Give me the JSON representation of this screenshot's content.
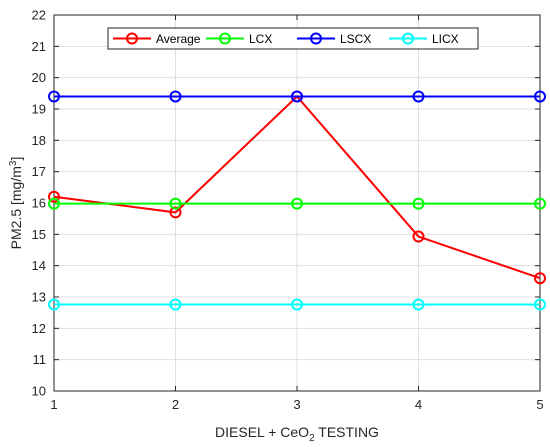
{
  "chart_data": {
    "type": "line",
    "title": "",
    "xlabel": {
      "main": "DIESEL + CeO",
      "sub": "2",
      "suffix": " TESTING"
    },
    "ylabel": {
      "main": "PM2.5 [mg/m",
      "sup": "3",
      "suffix": "]"
    },
    "x": [
      1,
      2,
      3,
      4,
      5
    ],
    "xlim": [
      1,
      5
    ],
    "ylim": [
      10,
      22
    ],
    "xticks": [
      "1",
      "2",
      "3",
      "4",
      "5"
    ],
    "yticks": [
      "10",
      "11",
      "12",
      "13",
      "14",
      "15",
      "16",
      "17",
      "18",
      "19",
      "20",
      "21",
      "22"
    ],
    "grid": true,
    "legend_position": "top",
    "series": [
      {
        "name": "Average",
        "color": "#ff0000",
        "values": [
          16.2,
          15.7,
          19.4,
          14.93,
          13.6
        ]
      },
      {
        "name": "LCX",
        "color": "#00ff00",
        "values": [
          15.98,
          15.98,
          15.98,
          15.98,
          15.98
        ]
      },
      {
        "name": "LSCX",
        "color": "#0000ff",
        "values": [
          19.4,
          19.4,
          19.4,
          19.4,
          19.4
        ]
      },
      {
        "name": "LICX",
        "color": "#00ffff",
        "values": [
          12.76,
          12.76,
          12.76,
          12.76,
          12.76
        ]
      }
    ]
  }
}
